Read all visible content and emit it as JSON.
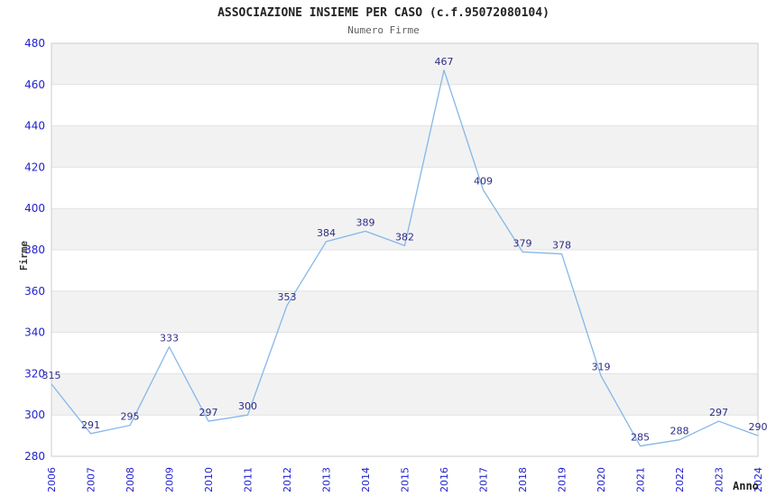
{
  "chart_data": {
    "type": "line",
    "title": "ASSOCIAZIONE INSIEME PER CASO (c.f.95072080104)",
    "subtitle": "Numero Firme",
    "xlabel": "Anno",
    "ylabel": "Firme",
    "categories": [
      "2006",
      "2007",
      "2008",
      "2009",
      "2010",
      "2011",
      "2012",
      "2013",
      "2014",
      "2015",
      "2016",
      "2017",
      "2018",
      "2019",
      "2020",
      "2021",
      "2022",
      "2023",
      "2024"
    ],
    "series": [
      {
        "name": "Numero Firme",
        "values": [
          315,
          291,
          295,
          333,
          297,
          300,
          353,
          384,
          389,
          382,
          467,
          409,
          379,
          378,
          319,
          285,
          288,
          297,
          290
        ]
      }
    ],
    "ylim": [
      280,
      480
    ],
    "yticks": [
      280,
      300,
      320,
      340,
      360,
      380,
      400,
      420,
      440,
      460,
      480
    ],
    "grid": "horizontal-only",
    "banding": "alternating horizontal bands, gray topmost (460-480)",
    "legend": "none",
    "data_labels": "above each point"
  },
  "colors": {
    "background": "#ffffff",
    "line": "#85b7e8",
    "tick_label": "#2222cc",
    "data_label": "#2d2d86",
    "band_gray": "#f2f2f2",
    "grid_line": "#e2e2e2",
    "plot_border": "#cccccc",
    "title": "#222222",
    "subtitle": "#606060",
    "axis_title": "#333333"
  }
}
